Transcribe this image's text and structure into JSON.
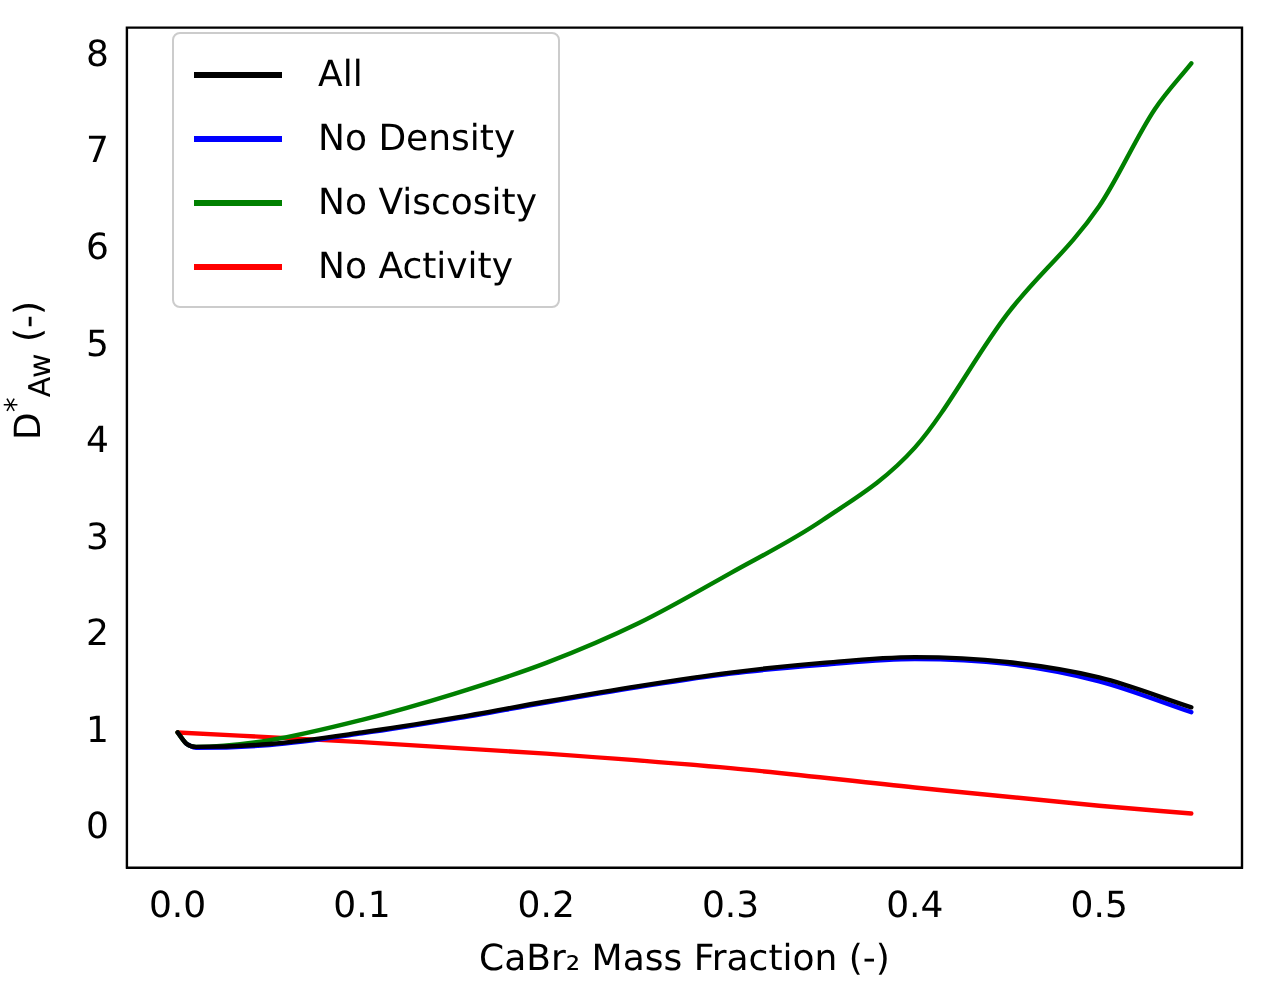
{
  "chart_data": {
    "type": "line",
    "xlabel": "CaBr₂ Mass Fraction (-)",
    "ylabel": "D$^{*}$$_{Aw}$ (-)",
    "xlim": [
      -0.0275,
      0.5775
    ],
    "xticks": [
      {
        "value": 0,
        "label": "0.0"
      },
      0.1,
      0.2,
      0.3,
      0.4,
      0.5
    ],
    "ylim": [
      -0.4,
      8.3
    ],
    "yticks": [
      0,
      1,
      2,
      3,
      4,
      5,
      6,
      7,
      8
    ],
    "legend": "top left",
    "grid": false,
    "marker": "none",
    "line_style": "solid",
    "series": [
      {
        "name": "All",
        "color": "#000000",
        "x": [
          0,
          0.005,
          0.01,
          0.05,
          0.1,
          0.15,
          0.2,
          0.25,
          0.3,
          0.35,
          0.4,
          0.45,
          0.5,
          0.55
        ],
        "values": [
          1.0,
          0.88,
          0.85,
          0.88,
          1.0,
          1.15,
          1.32,
          1.48,
          1.62,
          1.72,
          1.78,
          1.73,
          1.57,
          1.26
        ]
      },
      {
        "name": "No Density",
        "color": "#0000ff",
        "x": [
          0.005,
          0.01,
          0.05,
          0.1,
          0.15,
          0.2,
          0.25,
          0.3,
          0.35,
          0.4,
          0.45,
          0.5,
          0.55
        ],
        "values": [
          0.88,
          0.84,
          0.87,
          0.99,
          1.14,
          1.31,
          1.47,
          1.61,
          1.7,
          1.76,
          1.71,
          1.53,
          1.21
        ]
      },
      {
        "name": "No Viscosity",
        "color": "#008000",
        "x": [
          0,
          0.005,
          0.01,
          0.05,
          0.1,
          0.15,
          0.2,
          0.25,
          0.3,
          0.35,
          0.4,
          0.45,
          0.5,
          0.53,
          0.55
        ],
        "values": [
          1.0,
          0.88,
          0.85,
          0.92,
          1.13,
          1.4,
          1.72,
          2.13,
          2.65,
          3.2,
          3.95,
          5.33,
          6.45,
          7.45,
          7.93
        ]
      },
      {
        "name": "No Activity",
        "color": "#ff0000",
        "x": [
          0,
          0.1,
          0.2,
          0.3,
          0.4,
          0.5,
          0.55
        ],
        "values": [
          1.0,
          0.9,
          0.78,
          0.63,
          0.43,
          0.24,
          0.16
        ]
      }
    ]
  }
}
